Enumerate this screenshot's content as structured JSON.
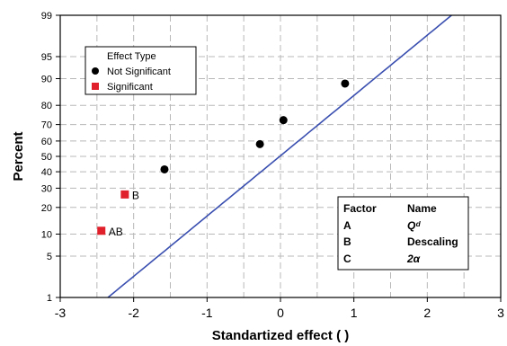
{
  "chart_data": {
    "type": "scatter",
    "title": "",
    "xlabel": "Standartized effect ( )",
    "ylabel": "Percent",
    "xlim": [
      -3,
      3
    ],
    "ylim": [
      1,
      99
    ],
    "y_scale": "normal-probability",
    "grid": true,
    "x_ticks": [
      "-3",
      "-2",
      "-1",
      "0",
      "1",
      "2",
      "3"
    ],
    "y_ticks": [
      "1",
      "5",
      "10",
      "20",
      "30",
      "40",
      "50",
      "60",
      "70",
      "80",
      "90",
      "95",
      "99"
    ],
    "legend": {
      "title": "Effect Type",
      "placement": "top-left",
      "entries": [
        {
          "label": "Not Significant",
          "marker": "circle",
          "color": "#000000"
        },
        {
          "label": "Significant",
          "marker": "square",
          "color": "#e0202a"
        }
      ]
    },
    "series": [
      {
        "name": "Not Significant",
        "color": "#000000",
        "points": [
          {
            "x": -1.58,
            "y": 41.5
          },
          {
            "x": -0.28,
            "y": 58
          },
          {
            "x": 0.04,
            "y": 72.5
          },
          {
            "x": 0.88,
            "y": 88.5
          }
        ]
      },
      {
        "name": "Significant",
        "color": "#e0202a",
        "points": [
          {
            "x": -2.12,
            "y": 26.5,
            "label": "B"
          },
          {
            "x": -2.44,
            "y": 11,
            "label": "AB"
          }
        ]
      }
    ],
    "reference_line": {
      "color": "#3a4fb0",
      "points": [
        {
          "x": -2.35,
          "y": 1
        },
        {
          "x": 2.33,
          "y": 99
        }
      ]
    },
    "factor_table": {
      "headers": [
        "Factor",
        "Name"
      ],
      "rows": [
        [
          "A",
          "Qᵈ"
        ],
        [
          "B",
          "Descaling"
        ],
        [
          "C",
          "2α"
        ]
      ]
    }
  }
}
